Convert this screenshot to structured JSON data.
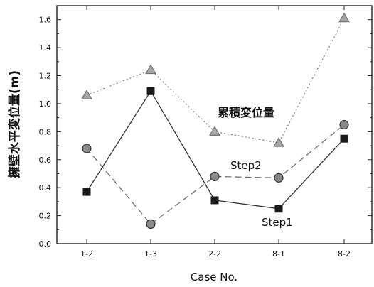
{
  "chart_data": {
    "type": "line",
    "categories": [
      "1-2",
      "1-3",
      "2-2",
      "8-1",
      "8-2"
    ],
    "xlabel": "Case No.",
    "ylabel": "擁壁水平変位量(m)",
    "ylim": [
      0.0,
      1.7
    ],
    "yticks": [
      "0.0",
      "0.2",
      "0.4",
      "0.6",
      "0.8",
      "1.0",
      "1.2",
      "1.4",
      "1.6"
    ],
    "grid": false,
    "series": [
      {
        "name": "Step1",
        "values": [
          0.37,
          1.09,
          0.31,
          0.25,
          0.75
        ],
        "marker": "square",
        "line": "solid"
      },
      {
        "name": "Step2",
        "values": [
          0.68,
          0.14,
          0.48,
          0.47,
          0.85
        ],
        "marker": "circle",
        "line": "dashed"
      },
      {
        "name": "累積変位量",
        "values": [
          1.06,
          1.24,
          0.8,
          0.72,
          1.61
        ],
        "marker": "triangle",
        "line": "dotted"
      }
    ],
    "annotations": [
      "累積変位量",
      "Step2",
      "Step1"
    ]
  }
}
